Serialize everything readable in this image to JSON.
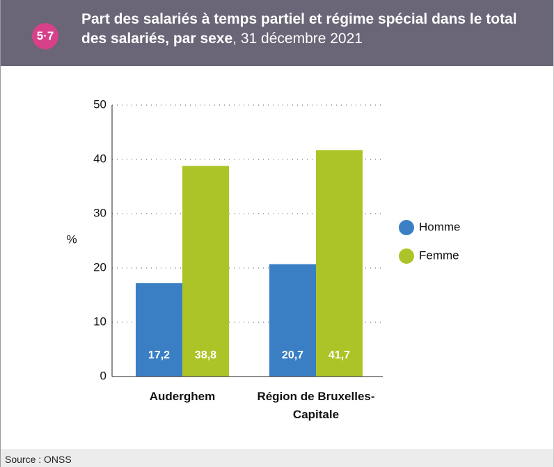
{
  "badge": "5·7",
  "chart_data": {
    "type": "bar",
    "title": "Part des salariés à temps partiel et régime spécial dans le total des salariés, par sexe",
    "subtitle": ", 31 décembre 2021",
    "y_label": "%",
    "categories": [
      "Auderghem",
      "Région de Bruxelles-Capitale"
    ],
    "series": [
      {
        "name": "Homme",
        "color": "#3a7fc4",
        "values": [
          17.2,
          20.7
        ],
        "value_labels": [
          "17,2",
          "20,7"
        ]
      },
      {
        "name": "Femme",
        "color": "#adc428",
        "values": [
          38.8,
          41.7
        ],
        "value_labels": [
          "38,8",
          "41,7"
        ]
      }
    ],
    "ylim": [
      0,
      50
    ],
    "yticks": [
      0,
      10,
      20,
      30,
      40,
      50
    ],
    "grid": true,
    "legend": "right"
  },
  "source": "Source : ONSS"
}
